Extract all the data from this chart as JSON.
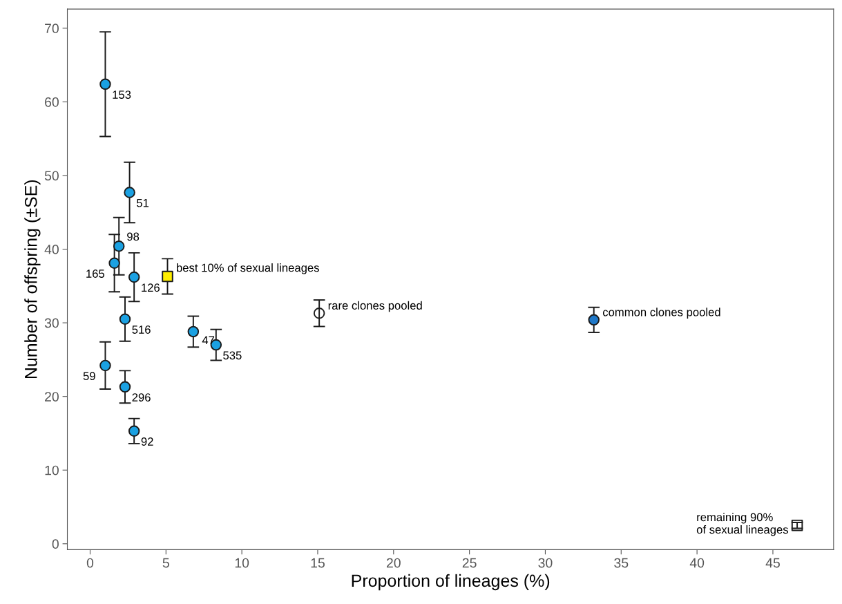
{
  "chart_data": {
    "type": "scatter",
    "xlabel": "Proportion of lineages (%)",
    "ylabel": "Number of offspring (±SE)",
    "xlim": [
      -1.5,
      49
    ],
    "ylim": [
      -0.8,
      72.6
    ],
    "xticks": [
      0,
      5,
      10,
      15,
      20,
      25,
      30,
      35,
      40,
      45
    ],
    "yticks": [
      0,
      10,
      20,
      30,
      40,
      50,
      60,
      70
    ],
    "grid": false,
    "legend": false,
    "series": [
      {
        "marker": "circle",
        "color": "#1ba1e2",
        "x": [
          1.0,
          2.6,
          1.9,
          1.6,
          2.9,
          2.3,
          6.8,
          8.3,
          1.0,
          2.3,
          2.9
        ],
        "values": [
          62.4,
          47.7,
          40.4,
          38.1,
          36.2,
          30.5,
          28.8,
          27.0,
          24.2,
          21.3,
          15.3
        ],
        "errors": [
          7.1,
          4.1,
          3.9,
          3.9,
          3.3,
          3.0,
          2.1,
          2.1,
          3.2,
          2.2,
          1.7
        ]
      },
      {
        "marker": "square",
        "color": "#ffee00",
        "x": [
          5.1
        ],
        "values": [
          36.3
        ],
        "errors": [
          2.4
        ]
      },
      {
        "marker": "circle",
        "color": "#1a1a1a",
        "x": [
          15.1
        ],
        "values": [
          31.3
        ],
        "errors": [
          1.8
        ]
      },
      {
        "marker": "circle",
        "color": "#1f78c8",
        "x": [
          33.2
        ],
        "values": [
          30.4
        ],
        "errors": [
          1.7
        ]
      },
      {
        "marker": "square",
        "color": "#1a1a1a",
        "x": [
          46.6
        ],
        "values": [
          2.5
        ],
        "errors": [
          0.4
        ]
      }
    ],
    "annotations": [
      {
        "text": "153",
        "x": 1.0,
        "y": 62.4
      },
      {
        "text": "51",
        "x": 2.6,
        "y": 47.7
      },
      {
        "text": "98",
        "x": 1.9,
        "y": 40.4
      },
      {
        "text": "165",
        "x": 1.6,
        "y": 38.1
      },
      {
        "text": "126",
        "x": 2.9,
        "y": 36.2
      },
      {
        "text": "516",
        "x": 2.3,
        "y": 30.5
      },
      {
        "text": "47",
        "x": 6.8,
        "y": 28.8
      },
      {
        "text": "535",
        "x": 8.3,
        "y": 27.0
      },
      {
        "text": "59",
        "x": 1.0,
        "y": 24.2
      },
      {
        "text": "296",
        "x": 2.3,
        "y": 21.3
      },
      {
        "text": "92",
        "x": 2.9,
        "y": 15.3
      },
      {
        "text": "best 10% of sexual lineages",
        "x": 5.1,
        "y": 36.3
      },
      {
        "text": "rare clones pooled",
        "x": 15.1,
        "y": 31.3
      },
      {
        "text": "common clones pooled",
        "x": 33.2,
        "y": 30.4
      },
      {
        "text": "remaining 90%\nof sexual lineages",
        "x": 46.6,
        "y": 2.5
      }
    ]
  }
}
